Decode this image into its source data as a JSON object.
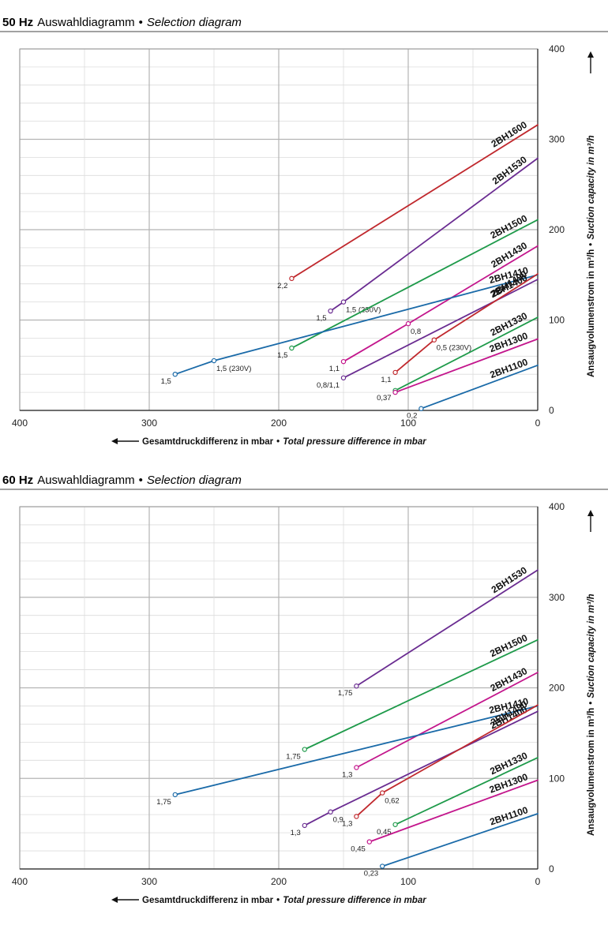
{
  "chart_data": [
    {
      "type": "line",
      "title_freq": "50 Hz",
      "title_de": "Auswahldiagramm",
      "title_sep": "•",
      "title_en": "Selection diagram",
      "xlabel_de": "Gesamtdruckdifferenz in mbar",
      "xlabel_sep": "•",
      "xlabel_en": "Total pressure difference in mbar",
      "ylabel_de": "Ansaugvolumenstrom in m³/h",
      "ylabel_sep": "•",
      "ylabel_en": "Suction capacity in m³/h",
      "xlim": [
        400,
        0
      ],
      "ylim": [
        0,
        400
      ],
      "x_ticks": [
        "400",
        "300",
        "200",
        "100",
        "0"
      ],
      "y_ticks": [
        "0",
        "100",
        "200",
        "300",
        "400"
      ],
      "series": [
        {
          "name": "2BH1600",
          "color": "#c0282d",
          "points": [
            [
              190,
              146
            ],
            [
              0,
              316
            ]
          ],
          "labels": [
            {
              "text": "2,2",
              "at": 0
            }
          ]
        },
        {
          "name": "2BH1530",
          "color": "#6a2c91",
          "points": [
            [
              160,
              110
            ],
            [
              150,
              120
            ],
            [
              0,
              279
            ]
          ],
          "labels": [
            {
              "text": "1,5",
              "at": 0
            },
            {
              "text": "1,5 (230V)",
              "at": 1
            }
          ]
        },
        {
          "name": "2BH1500",
          "color": "#1e9a4a",
          "points": [
            [
              190,
              69
            ],
            [
              0,
              211
            ]
          ],
          "labels": [
            {
              "text": "1,5",
              "at": 0
            }
          ]
        },
        {
          "name": "2BH1430",
          "color": "#c3168c",
          "points": [
            [
              150,
              54
            ],
            [
              100,
              96
            ],
            [
              0,
              182
            ]
          ],
          "labels": [
            {
              "text": "1,1",
              "at": 0
            },
            {
              "text": "0,8",
              "at": 1
            }
          ]
        },
        {
          "name": "2BH1410",
          "color": "#1a6aa8",
          "points": [
            [
              280,
              40
            ],
            [
              250,
              55
            ],
            [
              0,
              150
            ]
          ],
          "labels": [
            {
              "text": "1,5",
              "at": 0
            },
            {
              "text": "1,5 (230V)",
              "at": 1
            }
          ]
        },
        {
          "name": "2BH1400",
          "color": "#6a2c91",
          "points": [
            [
              150,
              36
            ],
            [
              0,
              145
            ]
          ],
          "labels": [
            {
              "text": "0,8/1,1",
              "at": 0
            }
          ]
        },
        {
          "name": "2BH1490",
          "color": "#c0282d",
          "points": [
            [
              110,
              42
            ],
            [
              80,
              78
            ],
            [
              0,
              151
            ]
          ],
          "labels": [
            {
              "text": "1,1",
              "at": 0
            },
            {
              "text": "0,5 (230V)",
              "at": 1
            }
          ]
        },
        {
          "name": "2BH1330",
          "color": "#1e9a4a",
          "points": [
            [
              110,
              22
            ],
            [
              0,
              103
            ]
          ],
          "labels": [
            {
              "text": "0,37",
              "at": 0
            }
          ]
        },
        {
          "name": "2BH1300",
          "color": "#c3168c",
          "points": [
            [
              110,
              20
            ],
            [
              0,
              79
            ]
          ],
          "labels": []
        },
        {
          "name": "2BH1100",
          "color": "#1a6aa8",
          "points": [
            [
              90,
              2
            ],
            [
              0,
              50
            ]
          ],
          "labels": [
            {
              "text": "0,2",
              "at": 0
            }
          ]
        }
      ]
    },
    {
      "type": "line",
      "title_freq": "60 Hz",
      "title_de": "Auswahldiagramm",
      "title_sep": "•",
      "title_en": "Selection diagram",
      "xlabel_de": "Gesamtdruckdifferenz in mbar",
      "xlabel_sep": "•",
      "xlabel_en": "Total pressure difference in mbar",
      "ylabel_de": "Ansaugvolumenstrom in m³/h",
      "ylabel_sep": "•",
      "ylabel_en": "Suction capacity in m³/h",
      "xlim": [
        400,
        0
      ],
      "ylim": [
        0,
        400
      ],
      "x_ticks": [
        "400",
        "300",
        "200",
        "100",
        "0"
      ],
      "y_ticks": [
        "0",
        "100",
        "200",
        "300",
        "400"
      ],
      "series": [
        {
          "name": "2BH1530",
          "color": "#6a2c91",
          "points": [
            [
              140,
              202
            ],
            [
              0,
              330
            ]
          ],
          "labels": [
            {
              "text": "1,75",
              "at": 0
            }
          ]
        },
        {
          "name": "2BH1500",
          "color": "#1e9a4a",
          "points": [
            [
              180,
              132
            ],
            [
              0,
              253
            ]
          ],
          "labels": [
            {
              "text": "1,75",
              "at": 0
            }
          ]
        },
        {
          "name": "2BH1430",
          "color": "#c3168c",
          "points": [
            [
              140,
              112
            ],
            [
              0,
              217
            ]
          ],
          "labels": [
            {
              "text": "1,3",
              "at": 0
            }
          ]
        },
        {
          "name": "2BH1410",
          "color": "#1a6aa8",
          "points": [
            [
              280,
              82
            ],
            [
              0,
              180
            ]
          ],
          "labels": [
            {
              "text": "1,75",
              "at": 0
            }
          ]
        },
        {
          "name": "2BH1400",
          "color": "#6a2c91",
          "points": [
            [
              180,
              48
            ],
            [
              160,
              63
            ],
            [
              0,
              174
            ]
          ],
          "labels": [
            {
              "text": "1,3",
              "at": 0
            },
            {
              "text": "0,9",
              "at": 1
            }
          ]
        },
        {
          "name": "2BH1490",
          "color": "#c0282d",
          "points": [
            [
              140,
              58
            ],
            [
              120,
              84
            ],
            [
              0,
              181
            ]
          ],
          "labels": [
            {
              "text": "1,3",
              "at": 0
            },
            {
              "text": "0,62",
              "at": 1
            }
          ]
        },
        {
          "name": "2BH1330",
          "color": "#1e9a4a",
          "points": [
            [
              110,
              49
            ],
            [
              0,
              123
            ]
          ],
          "labels": [
            {
              "text": "0,45",
              "at": 0
            }
          ]
        },
        {
          "name": "2BH1300",
          "color": "#c3168c",
          "points": [
            [
              130,
              30
            ],
            [
              0,
              98
            ]
          ],
          "labels": [
            {
              "text": "0,45",
              "at": 0
            }
          ]
        },
        {
          "name": "2BH1100",
          "color": "#1a6aa8",
          "points": [
            [
              120,
              3
            ],
            [
              0,
              61
            ]
          ],
          "labels": [
            {
              "text": "0,23",
              "at": 0
            }
          ]
        }
      ]
    }
  ]
}
